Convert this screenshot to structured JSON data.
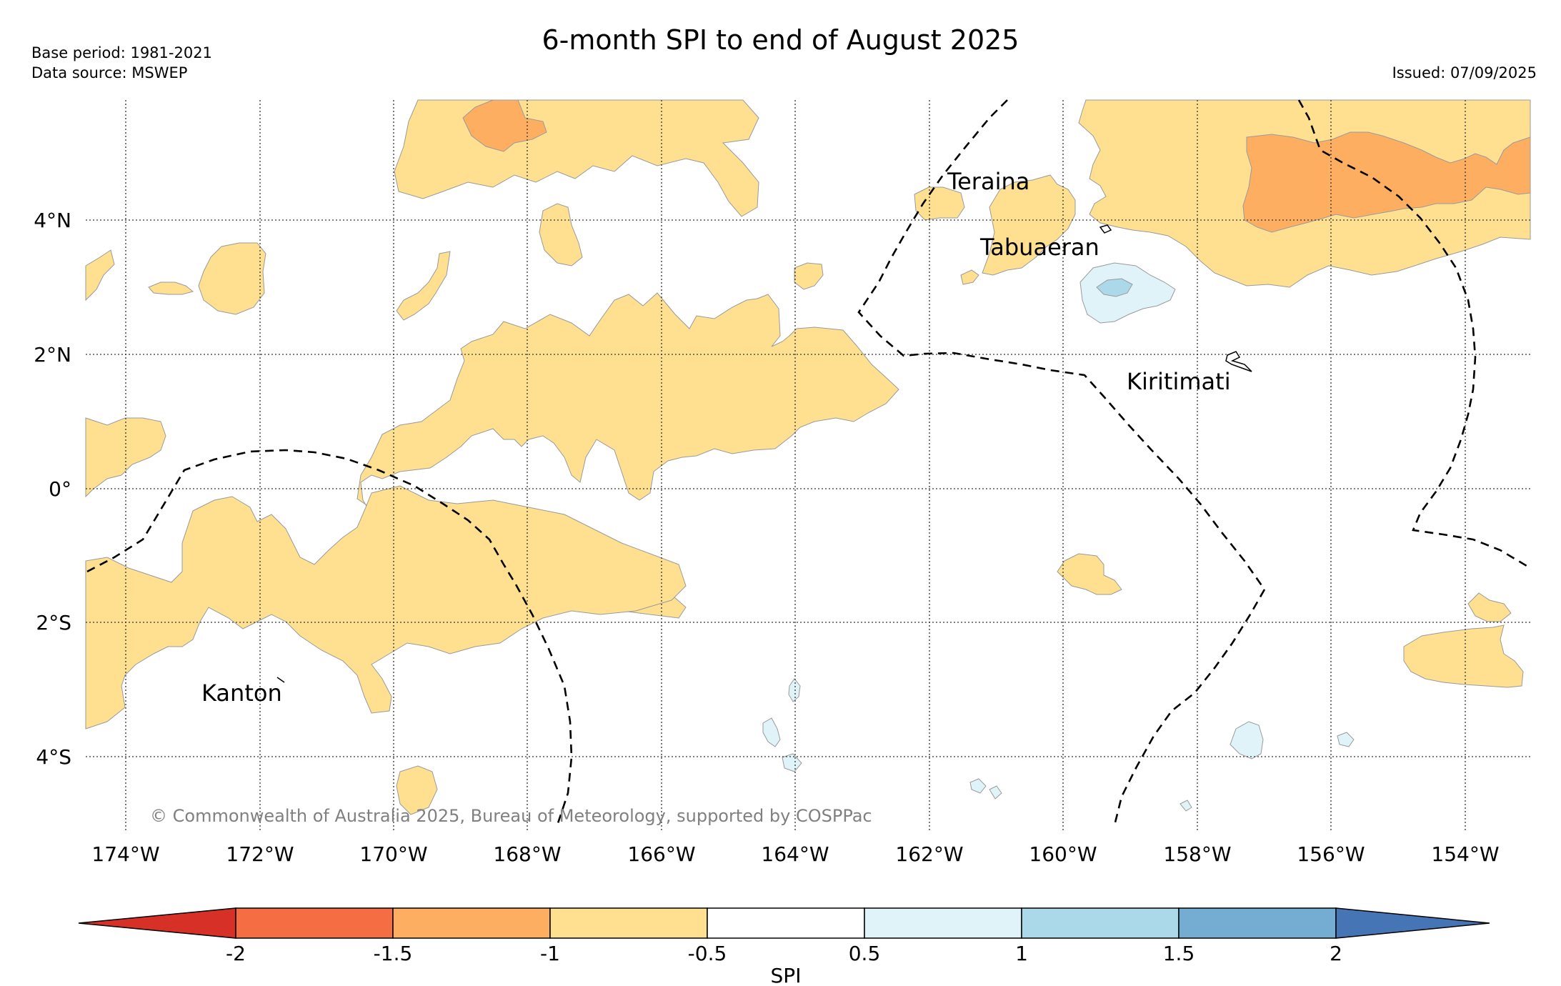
{
  "header": {
    "title": "6-month SPI to end of August 2025",
    "base_period": "Base period: 1981-2021",
    "data_source": "Data source: MSWEP",
    "issued": "Issued: 07/09/2025"
  },
  "map": {
    "lat_labels": [
      "4°N",
      "2°N",
      "0°",
      "2°S",
      "4°S"
    ],
    "lon_labels": [
      "174°W",
      "172°W",
      "170°W",
      "168°W",
      "166°W",
      "164°W",
      "162°W",
      "160°W",
      "158°W",
      "156°W",
      "154°W"
    ],
    "place_labels": [
      "Teraina",
      "Tabuaeran",
      "Kiritimati",
      "Kanton"
    ],
    "copyright": "© Commonwealth of Australia 2025, Bureau of Meteorology, supported by COSPPac"
  },
  "colorbar": {
    "label": "SPI",
    "ticks": [
      "-2",
      "-1.5",
      "-1",
      "-0.5",
      "0.5",
      "1",
      "1.5",
      "2"
    ],
    "colors": [
      "#d73027",
      "#f46d43",
      "#fdae61",
      "#fee090",
      "#ffffff",
      "#e0f3f8",
      "#abd9e9",
      "#74add1",
      "#4575b4"
    ]
  },
  "colors": {
    "dry_light": "#fee090",
    "dry_moderate": "#fdae61",
    "wet_light": "#e0f3f8",
    "wet_moderate": "#abd9e9"
  }
}
